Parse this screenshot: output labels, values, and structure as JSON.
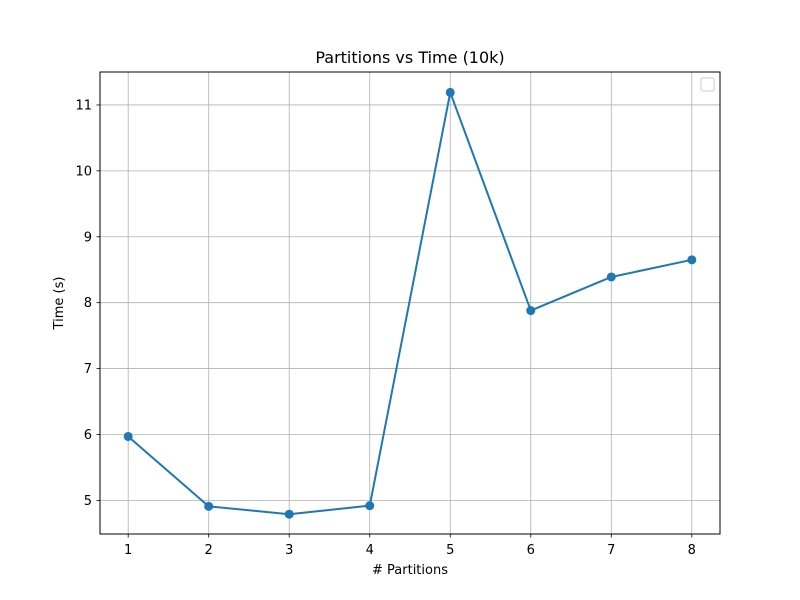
{
  "chart_data": {
    "type": "line",
    "title": "Partitions vs Time (10k)",
    "xlabel": "# Partitions",
    "ylabel": "Time (s)",
    "x": [
      1,
      2,
      3,
      4,
      5,
      6,
      7,
      8
    ],
    "series": [
      {
        "values": [
          5.97,
          4.91,
          4.79,
          4.92,
          11.19,
          7.88,
          8.39,
          8.65
        ],
        "color": "#1f77b4",
        "marker": "circle"
      }
    ],
    "xlim": [
      0.65,
      8.35
    ],
    "ylim": [
      4.49,
      11.5
    ],
    "xticks": [
      1,
      2,
      3,
      4,
      5,
      6,
      7,
      8
    ],
    "yticks": [
      5,
      6,
      7,
      8,
      9,
      10,
      11
    ],
    "grid": true,
    "legend": {
      "placement": "upper right",
      "entries": []
    }
  }
}
